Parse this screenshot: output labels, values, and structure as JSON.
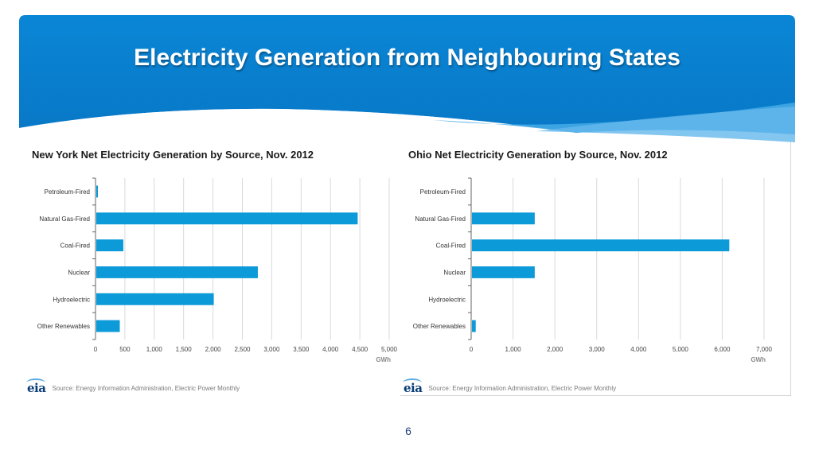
{
  "slide": {
    "title": "Electricity Generation from Neighbouring States",
    "page_number": "6"
  },
  "colors": {
    "header_blue": "#0a83d4",
    "bar_blue": "#0c9ad8",
    "title_text": "#ffffff"
  },
  "chart_data": [
    {
      "type": "bar",
      "orientation": "horizontal",
      "title": "New York Net Electricity Generation by Source, Nov. 2012",
      "categories": [
        "Petroleum-Fired",
        "Natural Gas-Fired",
        "Coal-Fired",
        "Nuclear",
        "Hydroelectric",
        "Other Renewables"
      ],
      "values": [
        20,
        4450,
        460,
        2750,
        2000,
        400
      ],
      "xlabel": "GWh",
      "xlim": [
        0,
        5000
      ],
      "xticks": [
        0,
        500,
        1000,
        1500,
        2000,
        2500,
        3000,
        3500,
        4000,
        4500,
        5000
      ],
      "xtick_labels": [
        "0",
        "500",
        "1,000",
        "1,500",
        "2,000",
        "2,500",
        "3,000",
        "3,500",
        "4,000",
        "4,500",
        "5,000"
      ],
      "grid": true,
      "source": "Source: Energy Information Administration, Electric Power Monthly",
      "logo_text": "eia"
    },
    {
      "type": "bar",
      "orientation": "horizontal",
      "title": "Ohio Net Electricity Generation by Source, Nov. 2012",
      "categories": [
        "Petroleum-Fired",
        "Natural Gas-Fired",
        "Coal-Fired",
        "Nuclear",
        "Hydroelectric",
        "Other Renewables"
      ],
      "values": [
        0,
        1500,
        6150,
        1500,
        0,
        90
      ],
      "xlabel": "GWh",
      "xlim": [
        0,
        7000
      ],
      "xticks": [
        0,
        1000,
        2000,
        3000,
        4000,
        5000,
        6000,
        7000
      ],
      "xtick_labels": [
        "0",
        "1,000",
        "2,000",
        "3,000",
        "4,000",
        "5,000",
        "6,000",
        "7,000"
      ],
      "grid": true,
      "source": "Source: Energy Information Administration, Electric Power Monthly",
      "logo_text": "eia"
    }
  ]
}
